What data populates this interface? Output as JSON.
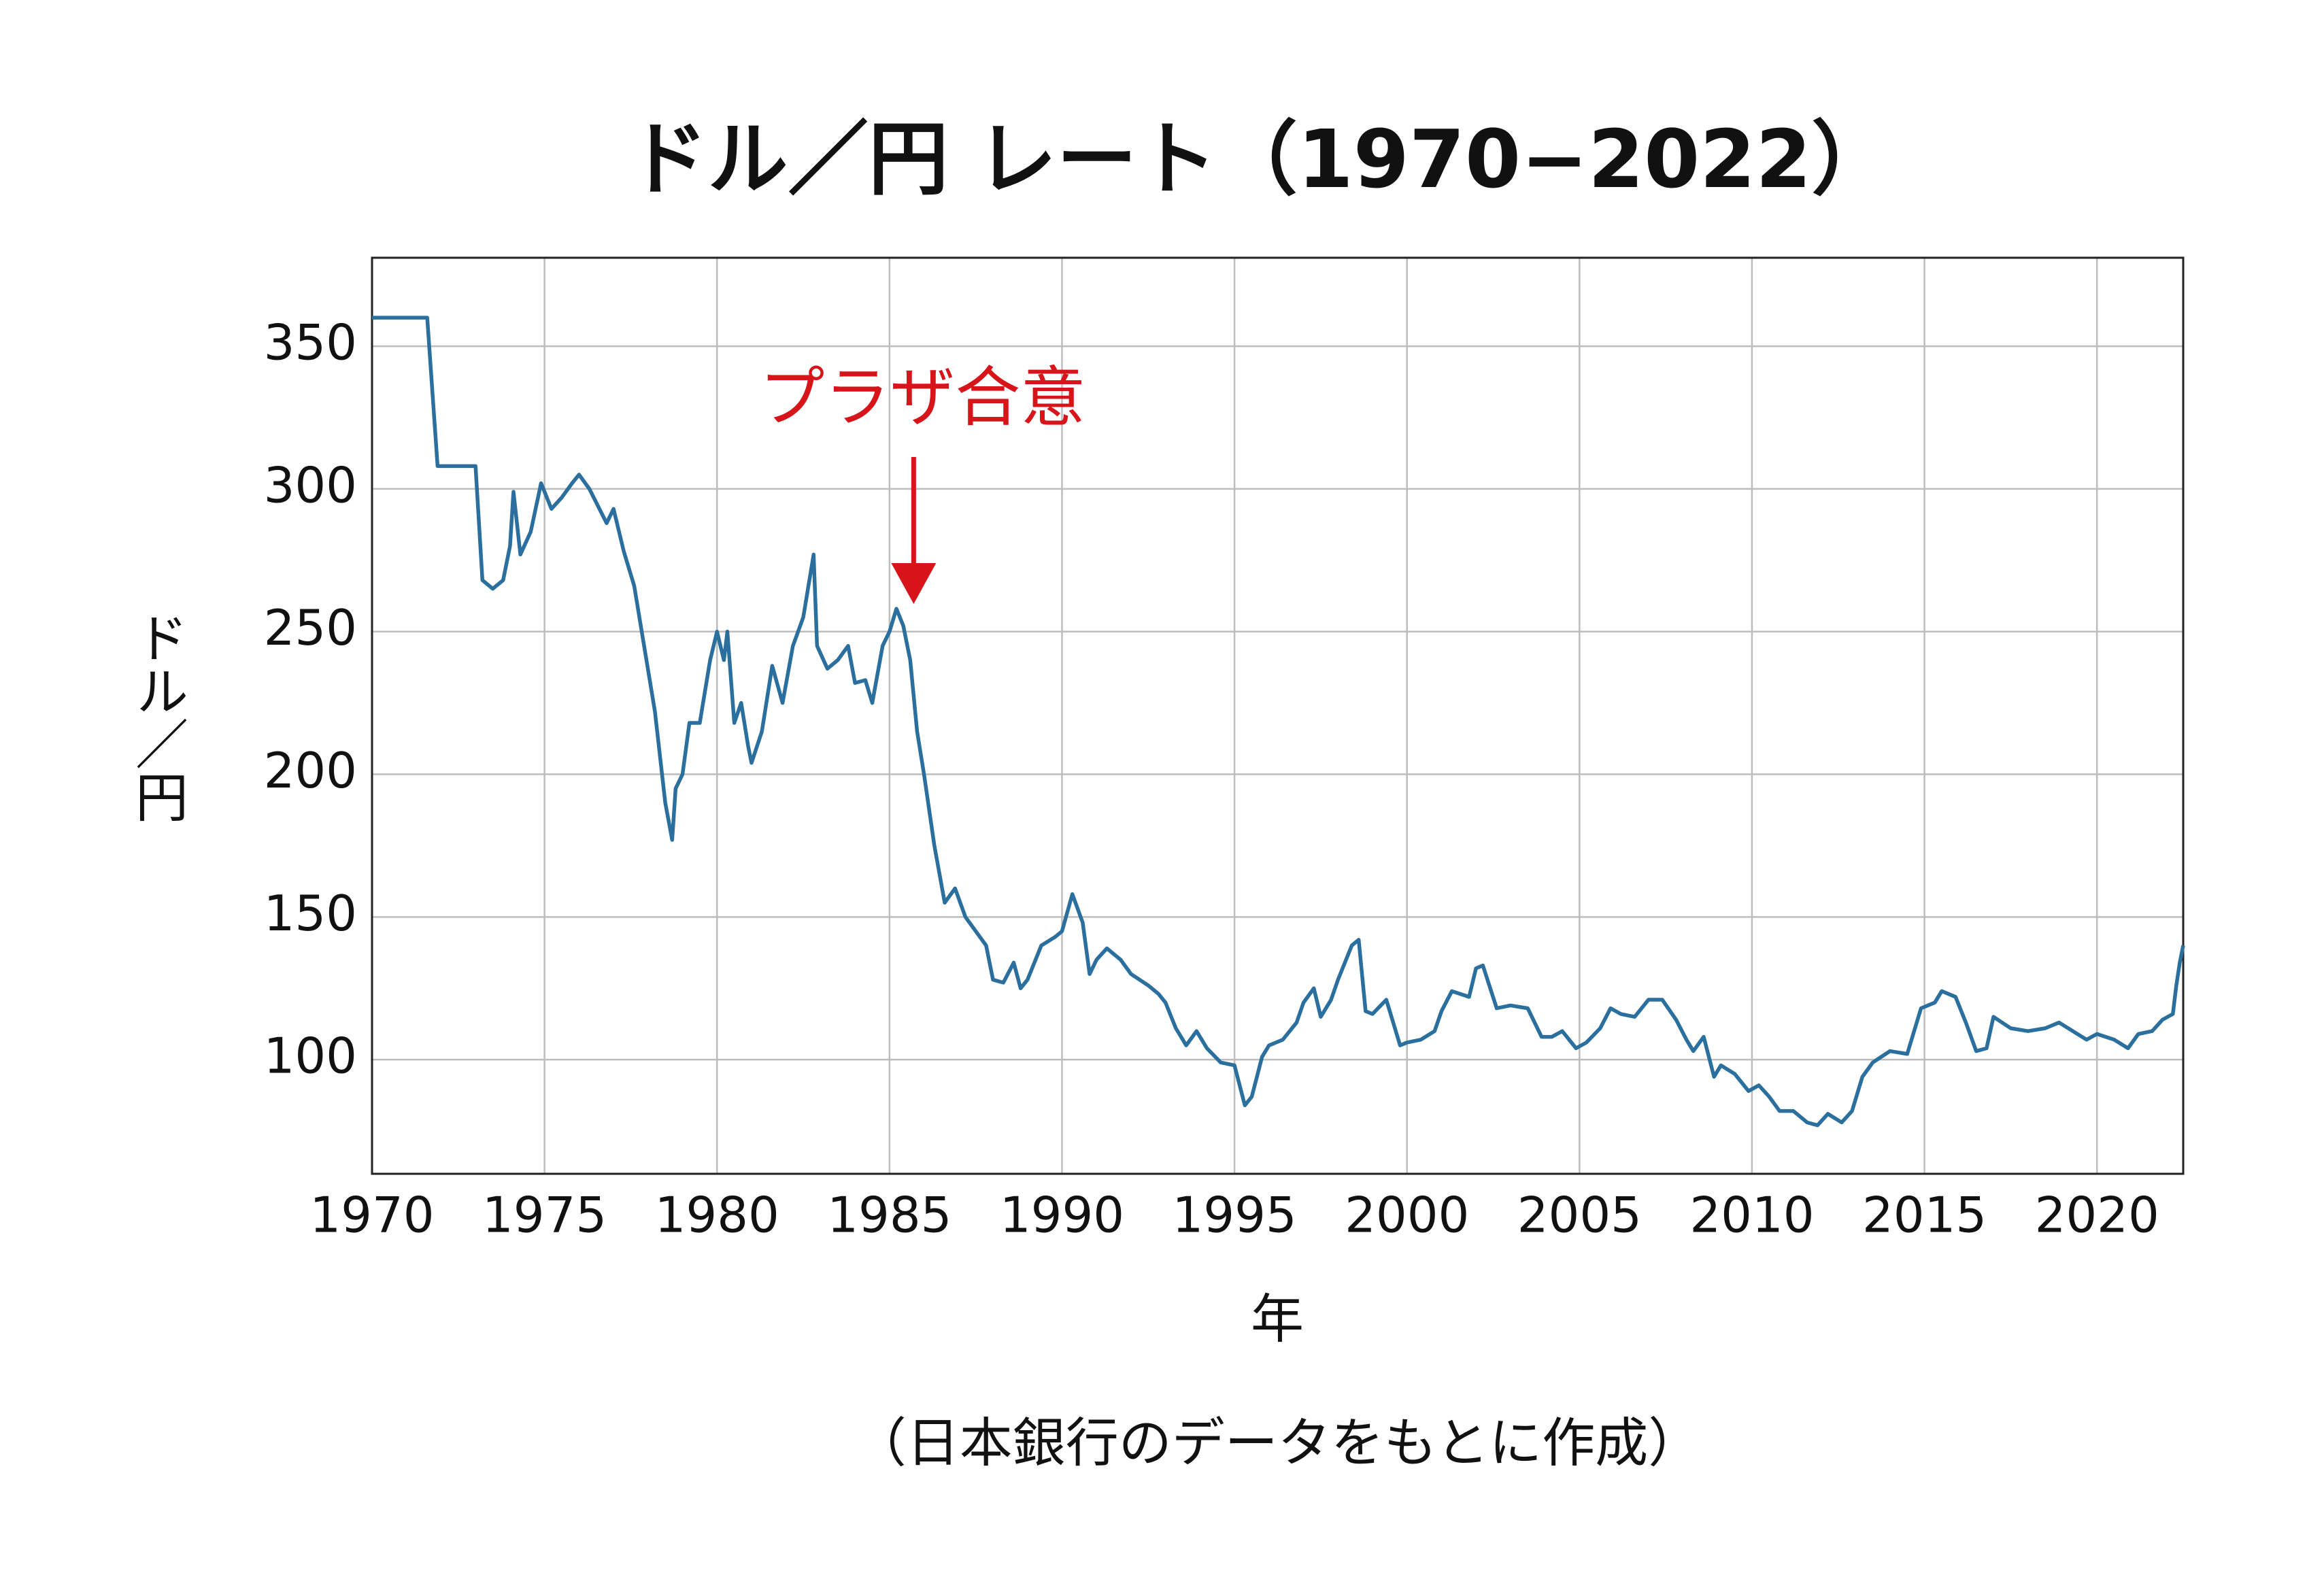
{
  "chart_data": {
    "type": "line",
    "title": "ドル／円 レート（1970−2022）",
    "x_label": "年",
    "y_label": "ドル／円",
    "note": "（日本銀行のデータをもとに作成）",
    "annotation": {
      "text": "プラザ合意",
      "x": 1985.7,
      "color": "#d7141a"
    },
    "xlim": [
      1970,
      2022.5
    ],
    "ylim": [
      60,
      381
    ],
    "xticks": [
      1970,
      1975,
      1980,
      1985,
      1990,
      1995,
      2000,
      2005,
      2010,
      2015,
      2020
    ],
    "yticks": [
      100,
      150,
      200,
      250,
      300,
      350
    ],
    "grid": true,
    "series": [
      {
        "name": "ドル／円",
        "color": "#2a6f9e",
        "x": [
          1970,
          1971.6,
          1971.9,
          1973.0,
          1973.2,
          1973.5,
          1973.8,
          1974.0,
          1974.1,
          1974.3,
          1974.6,
          1974.9,
          1975.2,
          1975.5,
          1975.8,
          1976.0,
          1976.3,
          1976.8,
          1977.0,
          1977.3,
          1977.6,
          1977.9,
          1978.2,
          1978.5,
          1978.7,
          1978.8,
          1979.0,
          1979.2,
          1979.5,
          1979.8,
          1980.0,
          1980.2,
          1980.3,
          1980.5,
          1980.7,
          1980.9,
          1981.0,
          1981.3,
          1981.6,
          1981.9,
          1982.2,
          1982.5,
          1982.8,
          1982.9,
          1983.2,
          1983.5,
          1983.8,
          1984.0,
          1984.3,
          1984.5,
          1984.8,
          1985.0,
          1985.2,
          1985.4,
          1985.6,
          1985.8,
          1986.0,
          1986.3,
          1986.6,
          1986.9,
          1987.2,
          1987.5,
          1987.8,
          1988.0,
          1988.3,
          1988.6,
          1988.8,
          1989.0,
          1989.4,
          1989.8,
          1990.0,
          1990.3,
          1990.6,
          1990.8,
          1991.0,
          1991.3,
          1991.7,
          1992.0,
          1992.5,
          1992.8,
          1993.0,
          1993.3,
          1993.6,
          1993.9,
          1994.2,
          1994.6,
          1995.0,
          1995.3,
          1995.5,
          1995.8,
          1996.0,
          1996.4,
          1996.8,
          1997.0,
          1997.3,
          1997.5,
          1997.8,
          1998.0,
          1998.4,
          1998.6,
          1998.8,
          1999.0,
          1999.4,
          1999.8,
          2000.0,
          2000.4,
          2000.8,
          2001.0,
          2001.3,
          2001.8,
          2002.0,
          2002.2,
          2002.6,
          2003.0,
          2003.5,
          2003.9,
          2004.2,
          2004.5,
          2004.9,
          2005.2,
          2005.6,
          2005.9,
          2006.2,
          2006.6,
          2007.0,
          2007.4,
          2007.8,
          2008.1,
          2008.3,
          2008.6,
          2008.9,
          2009.1,
          2009.5,
          2009.9,
          2010.2,
          2010.5,
          2010.8,
          2011.2,
          2011.6,
          2011.9,
          2012.2,
          2012.6,
          2012.9,
          2013.2,
          2013.5,
          2014.0,
          2014.5,
          2014.9,
          2015.3,
          2015.5,
          2015.9,
          2016.2,
          2016.5,
          2016.8,
          2017.0,
          2017.5,
          2018.0,
          2018.5,
          2018.9,
          2019.3,
          2019.7,
          2020.0,
          2020.5,
          2020.9,
          2021.2,
          2021.6,
          2021.9,
          2022.2,
          2022.3,
          2022.4,
          2022.5
        ],
        "values": [
          360,
          360,
          308,
          308,
          268,
          265,
          268,
          280,
          299,
          277,
          285,
          302,
          293,
          297,
          302,
          305,
          300,
          288,
          293,
          278,
          266,
          244,
          222,
          190,
          177,
          195,
          200,
          218,
          218,
          240,
          250,
          240,
          250,
          218,
          225,
          210,
          204,
          215,
          238,
          225,
          245,
          255,
          277,
          245,
          237,
          240,
          245,
          232,
          233,
          225,
          245,
          250,
          258,
          252,
          240,
          215,
          200,
          175,
          155,
          160,
          150,
          145,
          140,
          128,
          127,
          134,
          125,
          128,
          140,
          143,
          145,
          158,
          148,
          130,
          135,
          139,
          135,
          130,
          126,
          123,
          120,
          111,
          105,
          110,
          104,
          99,
          98,
          84,
          87,
          101,
          105,
          107,
          113,
          120,
          125,
          115,
          121,
          128,
          140,
          142,
          117,
          116,
          121,
          105,
          106,
          107,
          110,
          117,
          124,
          122,
          132,
          133,
          118,
          119,
          118,
          108,
          108,
          110,
          104,
          106,
          111,
          118,
          116,
          115,
          121,
          121,
          114,
          107,
          103,
          108,
          94,
          98,
          95,
          89,
          91,
          87,
          82,
          82,
          78,
          77,
          81,
          78,
          82,
          94,
          99,
          103,
          102,
          118,
          120,
          124,
          122,
          113,
          103,
          104,
          115,
          111,
          110,
          111,
          113,
          110,
          107,
          109,
          107,
          104,
          109,
          110,
          114,
          116,
          126,
          134,
          140
        ]
      }
    ]
  }
}
